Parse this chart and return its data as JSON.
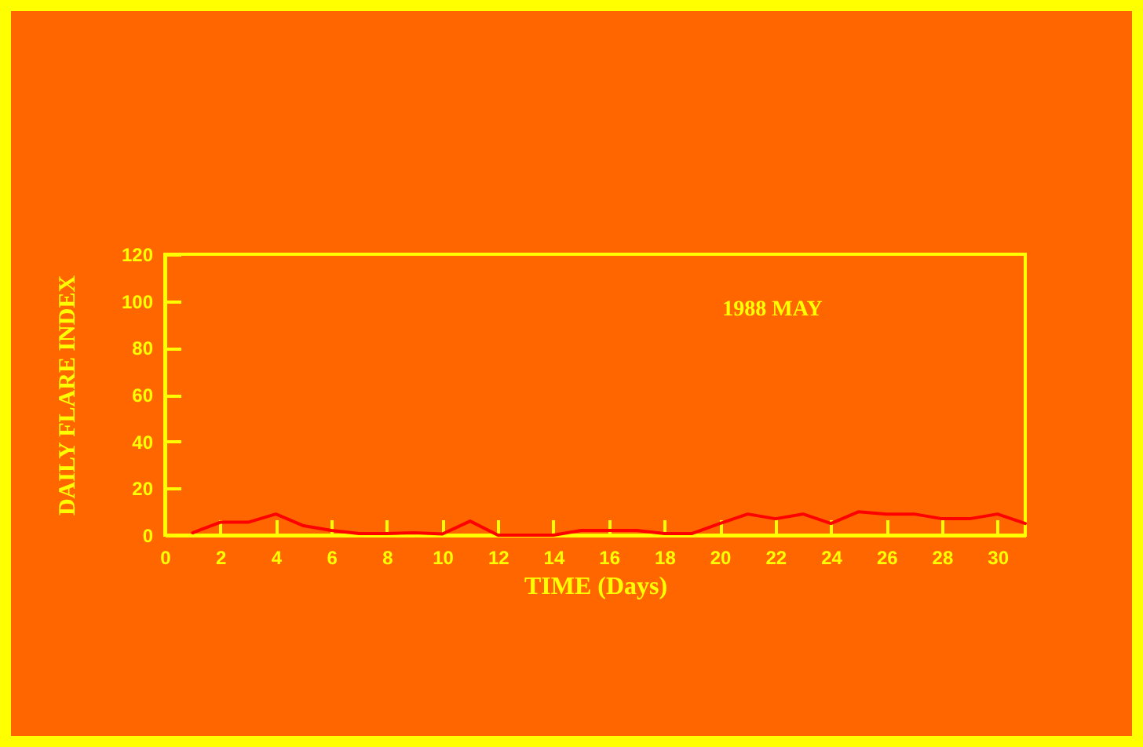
{
  "chart_data": {
    "type": "line",
    "annotations": [
      "1988 MAY"
    ],
    "xlabel": "TIME (Days)",
    "ylabel": "DAILY FLARE INDEX",
    "x": [
      1,
      2,
      3,
      4,
      5,
      6,
      7,
      8,
      9,
      10,
      11,
      12,
      13,
      14,
      15,
      16,
      17,
      18,
      19,
      20,
      21,
      22,
      23,
      24,
      25,
      26,
      27,
      28,
      29,
      30,
      31
    ],
    "series": [
      {
        "color": "#ff0000",
        "values": [
          1,
          5.5,
          5.5,
          9,
          4,
          2,
          0.7,
          0.7,
          1,
          0.5,
          6,
          0,
          0,
          0,
          2,
          2,
          2,
          0.7,
          0.7,
          5,
          9,
          7,
          9,
          5,
          10,
          9,
          9,
          7,
          7,
          9,
          5
        ]
      }
    ],
    "xlim": [
      0,
      31
    ],
    "xticks": [
      0,
      2,
      4,
      6,
      8,
      10,
      12,
      14,
      16,
      18,
      20,
      22,
      24,
      26,
      28,
      30
    ],
    "ylim": [
      0,
      120
    ],
    "yticks": [
      0,
      20,
      40,
      60,
      80,
      100,
      120
    ],
    "grid": false
  }
}
